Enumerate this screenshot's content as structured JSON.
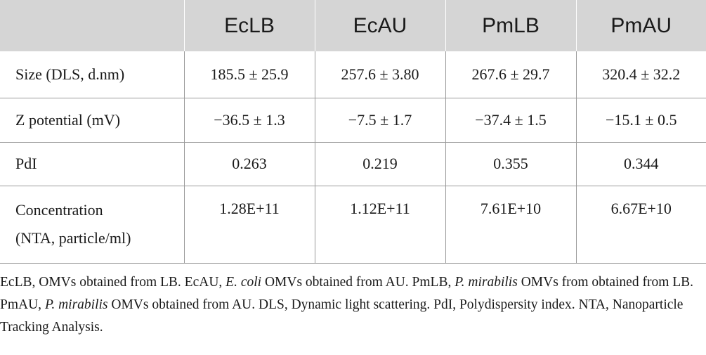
{
  "table": {
    "header": [
      "",
      "EcLB",
      "EcAU",
      "PmLB",
      "PmAU"
    ],
    "rows": [
      {
        "label": "Size (DLS, d.nm)",
        "values": [
          "185.5 ± 25.9",
          "257.6 ± 3.80",
          "267.6 ± 29.7",
          "320.4 ± 32.2"
        ]
      },
      {
        "label": "Z potential (mV)",
        "values": [
          "−36.5 ± 1.3",
          "−7.5 ± 1.7",
          "−37.4 ± 1.5",
          "−15.1 ± 0.5"
        ]
      },
      {
        "label": "PdI",
        "values": [
          "0.263",
          "0.219",
          "0.355",
          "0.344"
        ]
      },
      {
        "label_line1": "Concentration",
        "label_line2": "(NTA, particle/ml)",
        "values": [
          "1.28E+11",
          "1.12E+11",
          "7.61E+10",
          "6.67E+10"
        ]
      }
    ]
  },
  "footnote": {
    "seg1": "EcLB, OMVs obtained from LB. EcAU, ",
    "seg2_italic": "E. coli",
    "seg3": " OMVs obtained from AU. PmLB, ",
    "seg4_italic": "P. mirabilis",
    "seg5": " OMVs from obtained from LB. PmAU, ",
    "seg6_italic": "P. mirabilis",
    "seg7": " OMVs obtained from AU. DLS, Dynamic light scattering. PdI, Polydispersity index. NTA, Nanoparticle Tracking Analysis."
  },
  "colors": {
    "header_bg": "#d5d5d5",
    "grid_line": "#9a9a9a",
    "text": "#1a1a1a"
  }
}
